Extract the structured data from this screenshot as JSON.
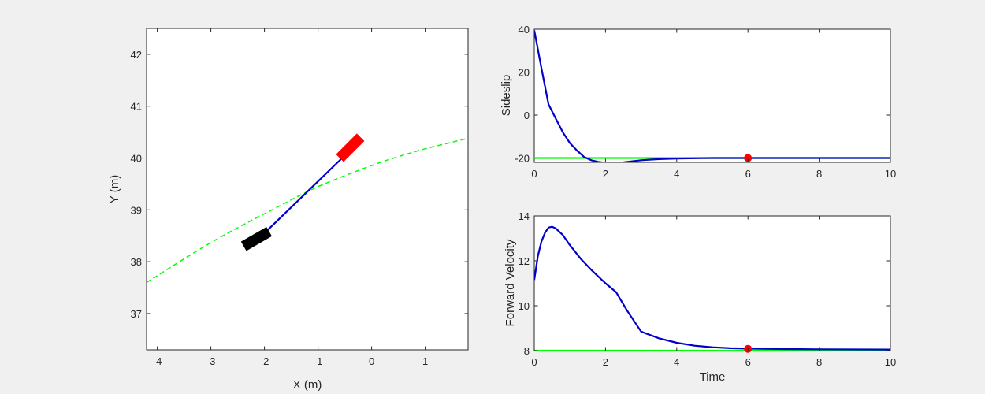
{
  "chart_data": [
    {
      "type": "line",
      "xlabel": "X (m)",
      "ylabel": "Y (m)",
      "xlim": [
        -4.2,
        1.8
      ],
      "ylim": [
        36.3,
        42.5
      ],
      "xticks": [
        -4,
        -3,
        -2,
        -1,
        0,
        1
      ],
      "yticks": [
        37,
        38,
        39,
        40,
        41,
        42
      ],
      "series": [
        {
          "style": "dashed",
          "color": "#00ff00",
          "x": [
            -4.2,
            -3.8,
            -3.4,
            -3.0,
            -2.6,
            -2.2,
            -1.8,
            -1.4,
            -1.0,
            -0.6,
            -0.2,
            0.2,
            0.6,
            1.0,
            1.4,
            1.8
          ],
          "y": [
            37.6,
            37.86,
            38.12,
            38.37,
            38.6,
            38.82,
            39.03,
            39.25,
            39.45,
            39.62,
            39.78,
            39.93,
            40.06,
            40.18,
            40.28,
            40.38
          ]
        },
        {
          "style": "solid",
          "color": "#0000cd",
          "x": [
            -1.95,
            -0.55
          ],
          "y": [
            38.6,
            40.0
          ]
        }
      ],
      "annotations": [
        {
          "shape": "rectangle",
          "color": "#ff0000",
          "center": [
            -0.4,
            40.2
          ],
          "length": 0.55,
          "width": 0.2,
          "angle_deg": 45
        },
        {
          "shape": "rectangle",
          "color": "#000000",
          "center": [
            -2.15,
            38.44
          ],
          "length": 0.55,
          "width": 0.2,
          "angle_deg": 30
        }
      ]
    },
    {
      "type": "line",
      "xlabel": "",
      "ylabel": "Sideslip",
      "xlim": [
        0,
        10
      ],
      "ylim": [
        -22,
        40
      ],
      "xticks": [
        0,
        2,
        4,
        6,
        8,
        10
      ],
      "yticks": [
        -20,
        0,
        20,
        40
      ],
      "series": [
        {
          "style": "solid",
          "color": "#00ff00",
          "x": [
            0,
            10
          ],
          "y": [
            -20,
            -20
          ]
        },
        {
          "style": "solid",
          "color": "#0000cd",
          "x": [
            0,
            0.2,
            0.4,
            0.6,
            0.8,
            1.0,
            1.2,
            1.4,
            1.6,
            1.8,
            2.0,
            2.2,
            2.5,
            3.0,
            3.5,
            4.0,
            5.0,
            6.0,
            7.0,
            8.0,
            10.0
          ],
          "y": [
            39.5,
            22,
            5,
            -1.5,
            -8,
            -13,
            -16.5,
            -19.5,
            -21,
            -21.8,
            -22.2,
            -22.3,
            -22,
            -21,
            -20.5,
            -20.2,
            -20,
            -20,
            -20,
            -20,
            -20
          ]
        }
      ],
      "markers": [
        {
          "x": 6,
          "y": -20,
          "color": "#ff0000"
        }
      ]
    },
    {
      "type": "line",
      "xlabel": "Time",
      "ylabel": "Forward Velocity",
      "xlim": [
        0,
        10
      ],
      "ylim": [
        8,
        14
      ],
      "xticks": [
        0,
        2,
        4,
        6,
        8,
        10
      ],
      "yticks": [
        8,
        10,
        12,
        14
      ],
      "series": [
        {
          "style": "solid",
          "color": "#00ff00",
          "x": [
            0,
            10
          ],
          "y": [
            8,
            8
          ]
        },
        {
          "style": "solid",
          "color": "#0000cd",
          "x": [
            0,
            0.1,
            0.2,
            0.3,
            0.4,
            0.5,
            0.6,
            0.8,
            1.0,
            1.3,
            1.6,
            2.0,
            2.3,
            2.6,
            3.0,
            3.5,
            4.0,
            4.5,
            5.0,
            5.5,
            6.0,
            7.0,
            8.0,
            10.0
          ],
          "y": [
            11.15,
            12.2,
            12.85,
            13.25,
            13.48,
            13.52,
            13.45,
            13.15,
            12.7,
            12.1,
            11.6,
            11.0,
            10.6,
            9.8,
            8.85,
            8.55,
            8.35,
            8.22,
            8.15,
            8.11,
            8.09,
            8.07,
            8.06,
            8.05
          ]
        }
      ],
      "markers": [
        {
          "x": 6,
          "y": 8.08,
          "color": "#ff0000"
        }
      ]
    }
  ]
}
